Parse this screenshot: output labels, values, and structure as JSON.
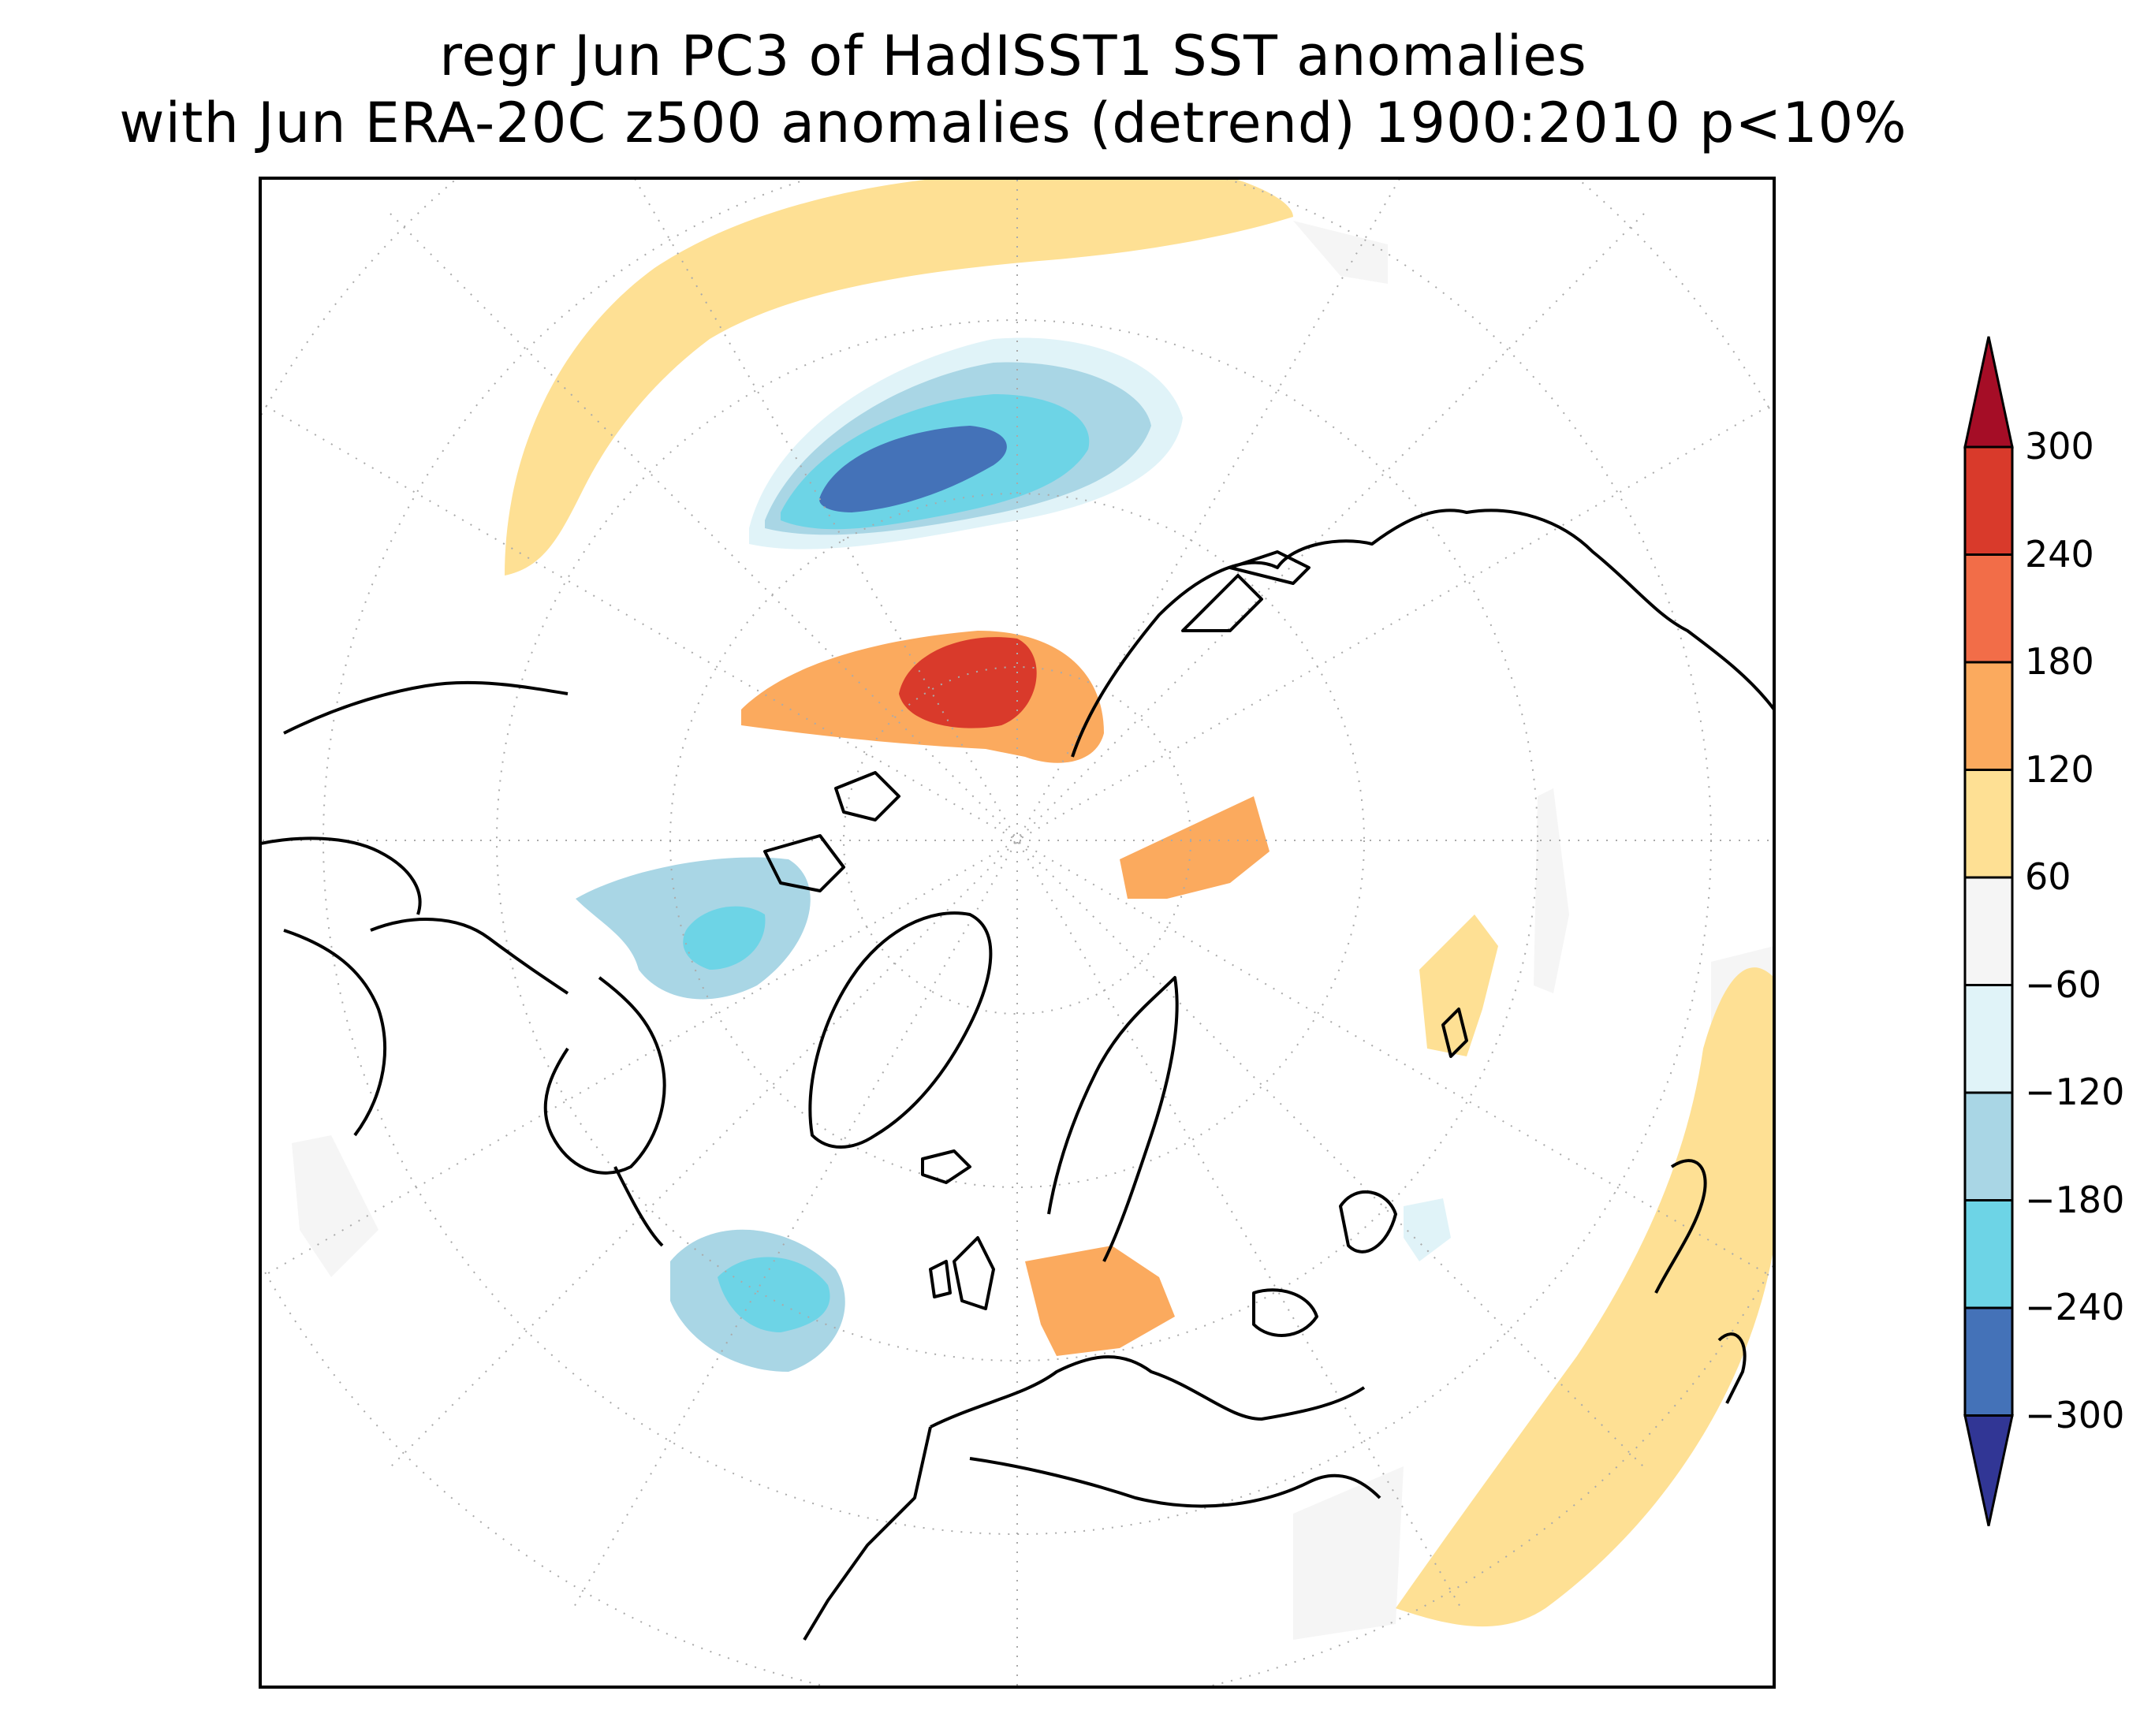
{
  "title_line1": "regr Jun PC3 of HadISST1 SST anomalies",
  "title_line2": "with Jun ERA-20C z500 anomalies (detrend) 1900:2010 p<10%",
  "colorbar": {
    "levels": [
      "300",
      "240",
      "180",
      "120",
      "60",
      "−60",
      "−120",
      "−180",
      "−240",
      "−300"
    ],
    "colors": {
      "over": "#a50d26",
      "c270": "#d93a2b",
      "c210": "#f26d48",
      "c150": "#fbaa5e",
      "c90": "#fee094",
      "c0": "#f5f5f5",
      "cm90": "#e0f3f8",
      "cm150": "#a9d6e5",
      "cm210": "#6dd4e6",
      "cm270": "#4472b8",
      "under": "#313695"
    }
  }
}
